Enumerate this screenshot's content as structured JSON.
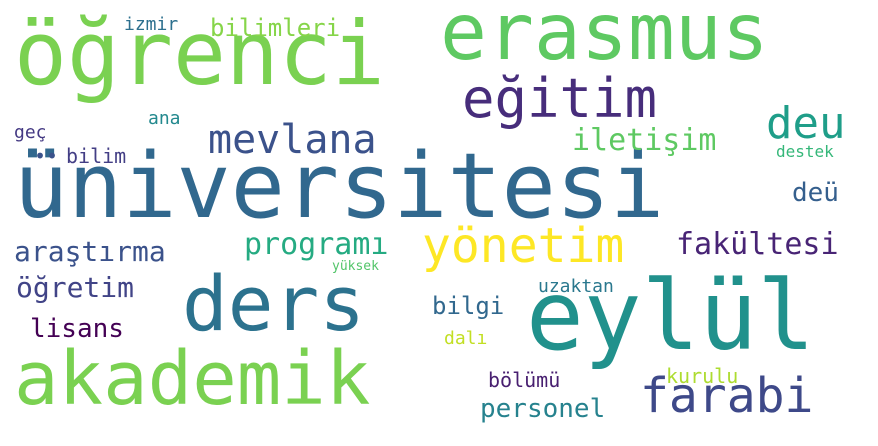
{
  "word_cloud": {
    "words": [
      {
        "text": "üniversitesi",
        "color": "#31688e"
      },
      {
        "text": "öğrenci",
        "color": "#7ad151"
      },
      {
        "text": "erasmus",
        "color": "#5ec962"
      },
      {
        "text": "eğitim",
        "color": "#472d7b"
      },
      {
        "text": "ders",
        "color": "#2c728e"
      },
      {
        "text": "eylül",
        "color": "#21918c"
      },
      {
        "text": "akademik",
        "color": "#7ad151"
      },
      {
        "text": "yönetim",
        "color": "#fde725"
      },
      {
        "text": "mevlana",
        "color": "#3b528b"
      },
      {
        "text": "deu",
        "color": "#1f9e89"
      },
      {
        "text": "farabi",
        "color": "#3e4989"
      },
      {
        "text": "araştırma",
        "color": "#3b528b"
      },
      {
        "text": "programı",
        "color": "#25ab82"
      },
      {
        "text": "fakültesi",
        "color": "#482475"
      },
      {
        "text": "iletişim",
        "color": "#5ec962"
      },
      {
        "text": "öğretim",
        "color": "#414487"
      },
      {
        "text": "bilimleri",
        "color": "#86d549"
      },
      {
        "text": "lisans",
        "color": "#440154"
      },
      {
        "text": "bilgi",
        "color": "#31688e"
      },
      {
        "text": "personel",
        "color": "#26828e"
      },
      {
        "text": "bölümü",
        "color": "#481f70"
      },
      {
        "text": "kurulu",
        "color": "#addc30"
      },
      {
        "text": "uzaktan",
        "color": "#2a788e"
      },
      {
        "text": "bilim",
        "color": "#433e85"
      },
      {
        "text": "deü",
        "color": "#355f8d"
      },
      {
        "text": "destek",
        "color": "#35b779"
      },
      {
        "text": "izmir",
        "color": "#2d708e"
      },
      {
        "text": "ana",
        "color": "#23898e"
      },
      {
        "text": "geç",
        "color": "#443983"
      },
      {
        "text": "dalı",
        "color": "#c2df23"
      },
      {
        "text": "yüksek",
        "color": "#52c569"
      },
      {
        "text": "••",
        "color": "#3b528b"
      }
    ]
  }
}
